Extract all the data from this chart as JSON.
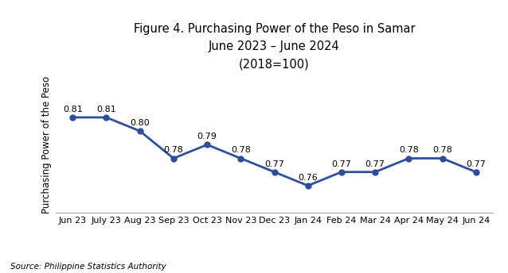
{
  "title_line1": "Figure 4. Purchasing Power of the Peso in Samar",
  "title_line2": "June 2023 – June 2024",
  "title_line3": "(2018=100)",
  "ylabel": "Purchasing Power of the Peso",
  "source": "Source: Philippine Statistics Authority",
  "categories": [
    "Jun 23",
    "July 23",
    "Aug 23",
    "Sep 23",
    "Oct 23",
    "Nov 23",
    "Dec 23",
    "Jan 24",
    "Feb 24",
    "Mar 24",
    "Apr 24",
    "May 24",
    "Jun 24"
  ],
  "values": [
    0.81,
    0.81,
    0.8,
    0.78,
    0.79,
    0.78,
    0.77,
    0.76,
    0.77,
    0.77,
    0.78,
    0.78,
    0.77
  ],
  "line_color": "#2E4D9B",
  "marker_size": 5,
  "line_width": 2,
  "ylim_min": 0.745,
  "ylim_max": 0.835,
  "grid_color": "#cccccc",
  "background_color": "#ffffff",
  "title_fontsize": 10.5,
  "tick_fontsize": 8,
  "ylabel_fontsize": 8.5,
  "source_fontsize": 7.5,
  "data_label_fontsize": 8
}
